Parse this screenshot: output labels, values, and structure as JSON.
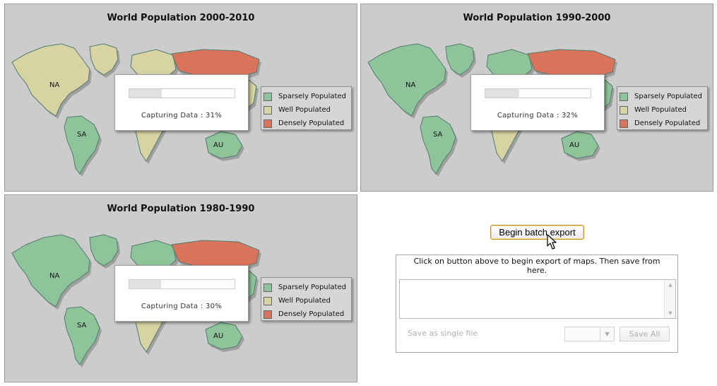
{
  "maps": [
    {
      "title": "World Population 2000-2010",
      "progress_text": "Capturing Data : 31%",
      "progress_fraction": 0.31,
      "regions": {
        "north_america": "well",
        "south_america": "sparse",
        "greenland": "well",
        "europe": "well",
        "russia": "dense",
        "africa": "well",
        "asia": "well",
        "australia": "sparse"
      }
    },
    {
      "title": "World Population 1990-2000",
      "progress_text": "Capturing Data : 32%",
      "progress_fraction": 0.32,
      "regions": {
        "north_america": "sparse",
        "south_america": "sparse",
        "greenland": "sparse",
        "europe": "sparse",
        "russia": "dense",
        "africa": "well",
        "asia": "sparse",
        "australia": "sparse"
      }
    },
    {
      "title": "World Population 1980-1990",
      "progress_text": "Capturing Data : 30%",
      "progress_fraction": 0.3,
      "regions": {
        "north_america": "sparse",
        "south_america": "sparse",
        "greenland": "sparse",
        "europe": "sparse",
        "russia": "dense",
        "africa": "well",
        "asia": "sparse",
        "australia": "sparse"
      }
    }
  ],
  "continent_labels": {
    "na": "NA",
    "sa": "SA",
    "au": "AU"
  },
  "legend": [
    {
      "key": "sparse",
      "label": "Sparsely Populated",
      "color": "#8fc49a"
    },
    {
      "key": "well",
      "label": "Well Populated",
      "color": "#d8d3a2"
    },
    {
      "key": "dense",
      "label": "Densely Populated",
      "color": "#d9735c"
    }
  ],
  "export": {
    "button_label": "Begin batch export",
    "instructions": "Click on button above to begin export of maps. Then save from here.",
    "single_file_label": "Save as single file",
    "save_all_label": "Save All"
  },
  "colors": {
    "panel_bg": "#cccccc",
    "button_border": "#c7902b",
    "disabled_text": "#b0b0b0"
  }
}
